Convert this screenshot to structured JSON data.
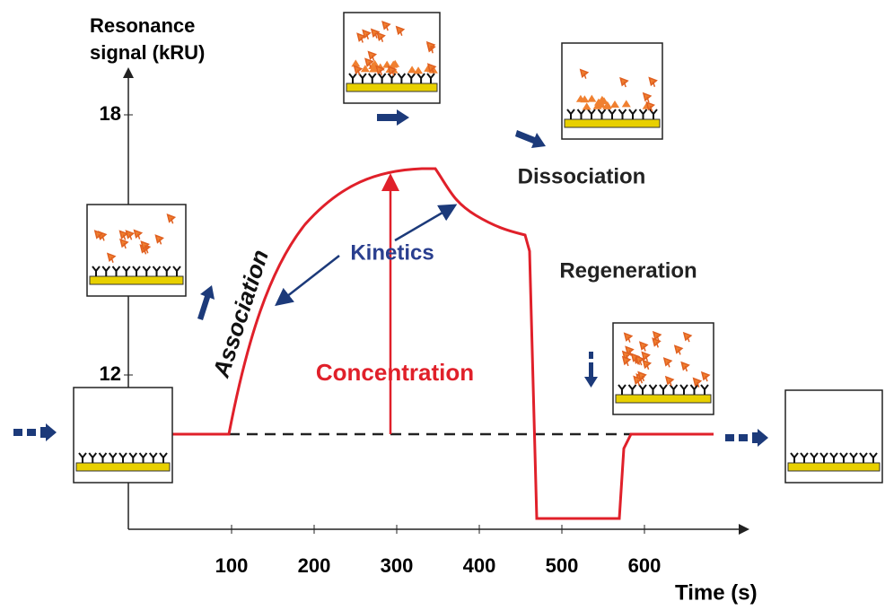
{
  "y_axis": {
    "label_lines": [
      "Resonance",
      "signal (kRU)"
    ],
    "ticks": [
      "18",
      "12"
    ]
  },
  "x_axis": {
    "label": "Time  (s)",
    "ticks": [
      "100",
      "200",
      "300",
      "400",
      "500",
      "600"
    ]
  },
  "annotations": {
    "association": "Association",
    "kinetics": "Kinetics",
    "concentration": "Concentration",
    "dissociation": "Dissociation",
    "regeneration": "Regeneration"
  }
}
